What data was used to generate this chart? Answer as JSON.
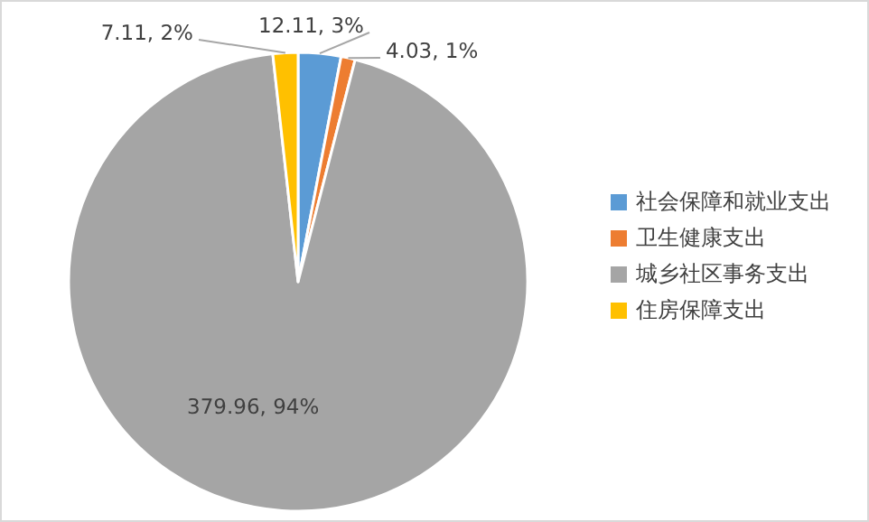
{
  "chart_data": {
    "type": "pie",
    "categories": [
      "社会保障和就业支出",
      "卫生健康支出",
      "城乡社区事务支出",
      "住房保障支出"
    ],
    "values": [
      12.11,
      4.03,
      379.96,
      7.11
    ],
    "colors": [
      "#5b9bd5",
      "#ed7d31",
      "#a5a5a5",
      "#ffc000"
    ],
    "value_labels": [
      "12.11, 3%",
      "4.03, 1%",
      "379.96, 94%",
      "7.11, 2%"
    ],
    "legend": "right"
  }
}
